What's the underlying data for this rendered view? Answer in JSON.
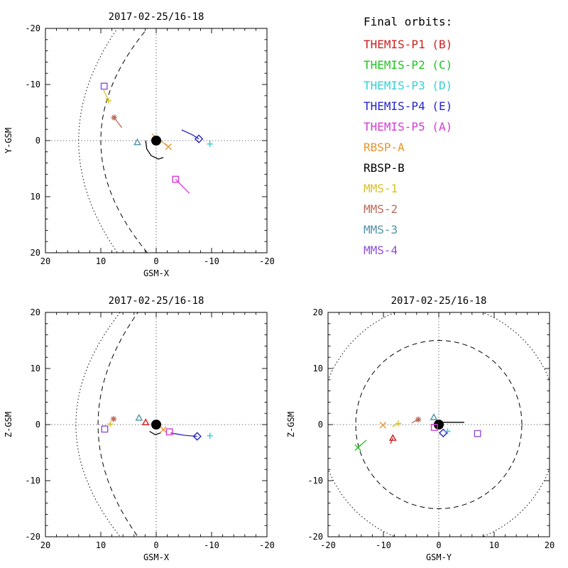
{
  "page": {
    "background": "#ffffff"
  },
  "legend": {
    "title": "Final orbits:",
    "entries": [
      {
        "name": "THEMIS-P1",
        "label": "THEMIS-P1 (B)",
        "color": "#cc2020"
      },
      {
        "name": "THEMIS-P2",
        "label": "THEMIS-P2 (C)",
        "color": "#21c421"
      },
      {
        "name": "THEMIS-P3",
        "label": "THEMIS-P3 (D)",
        "color": "#35cfd4"
      },
      {
        "name": "THEMIS-P4",
        "label": "THEMIS-P4 (E)",
        "color": "#2424c8"
      },
      {
        "name": "THEMIS-P5",
        "label": "THEMIS-P5 (A)",
        "color": "#d43bd4"
      },
      {
        "name": "RBSP-A",
        "label": "RBSP-A",
        "color": "#e6952f"
      },
      {
        "name": "RBSP-B",
        "label": "RBSP-B",
        "color": "#000000"
      },
      {
        "name": "MMS-1",
        "label": "MMS-1",
        "color": "#d9c227"
      },
      {
        "name": "MMS-2",
        "label": "MMS-2",
        "color": "#bc6a5a"
      },
      {
        "name": "MMS-3",
        "label": "MMS-3",
        "color": "#4f93a8"
      },
      {
        "name": "MMS-4",
        "label": "MMS-4",
        "color": "#8f4fd6"
      }
    ]
  },
  "spacecraft_symbols": {
    "THEMIS-P1": "triangle",
    "THEMIS-P2": "cross",
    "THEMIS-P3": "plus",
    "THEMIS-P4": "diamond",
    "THEMIS-P5": "square",
    "RBSP-A": "cross",
    "RBSP-B": "plus",
    "MMS-1": "plus",
    "MMS-2": "asterisk",
    "MMS-3": "triangle",
    "MMS-4": "square"
  },
  "chart_data": [
    {
      "type": "scatter",
      "id": "xy",
      "title": "2017-02-25/16-18",
      "xlabel": "GSM-X",
      "ylabel": "Y-GSM",
      "x_range": [
        20,
        -20
      ],
      "y_range": [
        -20,
        20
      ],
      "x_ticks": [
        20,
        10,
        0,
        -10,
        -20
      ],
      "y_ticks": [
        -20,
        -10,
        0,
        10,
        20
      ],
      "grid": "dotted-crosshair",
      "boundaries": [
        {
          "kind": "parabola",
          "line": "dashed",
          "subsolar": 10,
          "flare": 0.021
        },
        {
          "kind": "parabola",
          "line": "dotted",
          "subsolar": 14,
          "flare": 0.0175
        }
      ],
      "earth": {
        "x": 0,
        "y": 0,
        "r": 0.9
      },
      "points": [
        {
          "sc": "MMS-4",
          "x": 9.4,
          "y": -9.7
        },
        {
          "sc": "MMS-1",
          "x": 8.6,
          "y": -7.1,
          "trail": [
            [
              9.5,
              -9.0
            ],
            [
              8.6,
              -7.1
            ]
          ]
        },
        {
          "sc": "MMS-2",
          "x": 7.6,
          "y": -4.1,
          "trail": [
            [
              7.6,
              -4.1
            ],
            [
              6.2,
              -2.3
            ]
          ]
        },
        {
          "sc": "MMS-3",
          "x": 3.4,
          "y": 0.3
        },
        {
          "sc": "RBSP-A",
          "x": -2.2,
          "y": 1.1,
          "trail": [
            [
              0.8,
              -1.2
            ],
            [
              -2.2,
              1.1
            ]
          ]
        },
        {
          "sc": "RBSP-B",
          "trail": [
            [
              1.9,
              0.0
            ],
            [
              1.7,
              1.5
            ],
            [
              0.9,
              2.7
            ],
            [
              -0.4,
              3.3
            ],
            [
              -1.3,
              3.0
            ]
          ]
        },
        {
          "sc": "THEMIS-P4",
          "x": -7.7,
          "y": -0.3,
          "trail": [
            [
              -4.6,
              -1.9
            ],
            [
              -6.4,
              -1.1
            ],
            [
              -7.7,
              -0.3
            ]
          ]
        },
        {
          "sc": "THEMIS-P3",
          "x": -9.7,
          "y": 0.6
        },
        {
          "sc": "THEMIS-P5",
          "x": -3.5,
          "y": 6.9,
          "trail": [
            [
              -3.5,
              6.9
            ],
            [
              -6.0,
              9.4
            ]
          ]
        }
      ]
    },
    {
      "type": "scatter",
      "id": "xz",
      "title": "2017-02-25/16-18",
      "xlabel": "GSM-X",
      "ylabel": "Z-GSM",
      "x_range": [
        20,
        -20
      ],
      "y_range": [
        20,
        -20
      ],
      "x_ticks": [
        20,
        10,
        0,
        -10,
        -20
      ],
      "y_ticks": [
        20,
        10,
        0,
        -10,
        -20
      ],
      "grid": "dotted-crosshair",
      "boundaries": [
        {
          "kind": "parabola",
          "line": "dashed",
          "subsolar": 10.5,
          "flare": 0.018
        },
        {
          "kind": "parabola",
          "line": "dotted",
          "subsolar": 14.5,
          "flare": 0.02
        }
      ],
      "earth": {
        "x": 0,
        "y": 0,
        "r": 0.9
      },
      "points": [
        {
          "sc": "MMS-2",
          "x": 7.7,
          "y": 1.0
        },
        {
          "sc": "MMS-4",
          "x": 9.3,
          "y": -0.8
        },
        {
          "sc": "MMS-1",
          "x": 8.3,
          "y": 0.1
        },
        {
          "sc": "MMS-3",
          "x": 3.1,
          "y": 1.2
        },
        {
          "sc": "THEMIS-P1",
          "x": 1.9,
          "y": 0.4
        },
        {
          "sc": "RBSP-A",
          "x": -1.3,
          "y": -0.9
        },
        {
          "sc": "THEMIS-P5",
          "x": -2.4,
          "y": -1.3
        },
        {
          "sc": "THEMIS-P4",
          "x": -7.4,
          "y": -2.1,
          "trail": [
            [
              -2.6,
              -1.5
            ],
            [
              -5.0,
              -1.9
            ],
            [
              -7.4,
              -2.1
            ]
          ]
        },
        {
          "sc": "THEMIS-P3",
          "x": -9.7,
          "y": -2.0
        },
        {
          "sc": "RBSP-B",
          "trail": [
            [
              1.2,
              -1.2
            ],
            [
              0.2,
              -1.8
            ],
            [
              -0.8,
              -1.5
            ]
          ]
        }
      ]
    },
    {
      "type": "scatter",
      "id": "yz",
      "title": "2017-02-25/16-18",
      "xlabel": "GSM-Y",
      "ylabel": "Z-GSM",
      "x_range": [
        -20,
        20
      ],
      "y_range": [
        20,
        -20
      ],
      "x_ticks": [
        -20,
        -10,
        0,
        10,
        20
      ],
      "y_ticks": [
        20,
        10,
        0,
        -10,
        -20
      ],
      "grid": "dotted-crosshair",
      "boundaries": [
        {
          "kind": "circle",
          "line": "dashed",
          "radius": 15
        },
        {
          "kind": "circle",
          "line": "dotted",
          "radius": 21.5
        }
      ],
      "earth": {
        "x": 0,
        "y": 0,
        "r": 0.9
      },
      "points": [
        {
          "sc": "THEMIS-P2",
          "x": -14.6,
          "y": -4.1,
          "trail": [
            [
              -14.6,
              -4.1
            ],
            [
              -13.1,
              -2.8
            ]
          ]
        },
        {
          "sc": "RBSP-A",
          "x": -10.1,
          "y": -0.1
        },
        {
          "sc": "THEMIS-P1",
          "x": -8.3,
          "y": -2.4,
          "trail": [
            [
              -8.3,
              -2.4
            ],
            [
              -8.7,
              -3.4
            ]
          ]
        },
        {
          "sc": "MMS-1",
          "x": -7.3,
          "y": 0.2,
          "trail": [
            [
              -8.4,
              -0.4
            ],
            [
              -7.3,
              0.2
            ]
          ]
        },
        {
          "sc": "MMS-2",
          "x": -3.7,
          "y": 0.9,
          "trail": [
            [
              -4.9,
              0.3
            ],
            [
              -3.7,
              0.9
            ]
          ]
        },
        {
          "sc": "MMS-3",
          "x": -0.9,
          "y": 1.3
        },
        {
          "sc": "THEMIS-P5",
          "x": -0.8,
          "y": -0.5
        },
        {
          "sc": "RBSP-B",
          "trail": [
            [
              -0.5,
              0.4
            ],
            [
              4.6,
              0.4
            ]
          ]
        },
        {
          "sc": "THEMIS-P4",
          "x": 0.8,
          "y": -1.5
        },
        {
          "sc": "THEMIS-P3",
          "x": 1.6,
          "y": -1.2
        },
        {
          "sc": "MMS-4",
          "x": 7.0,
          "y": -1.6
        }
      ]
    }
  ]
}
